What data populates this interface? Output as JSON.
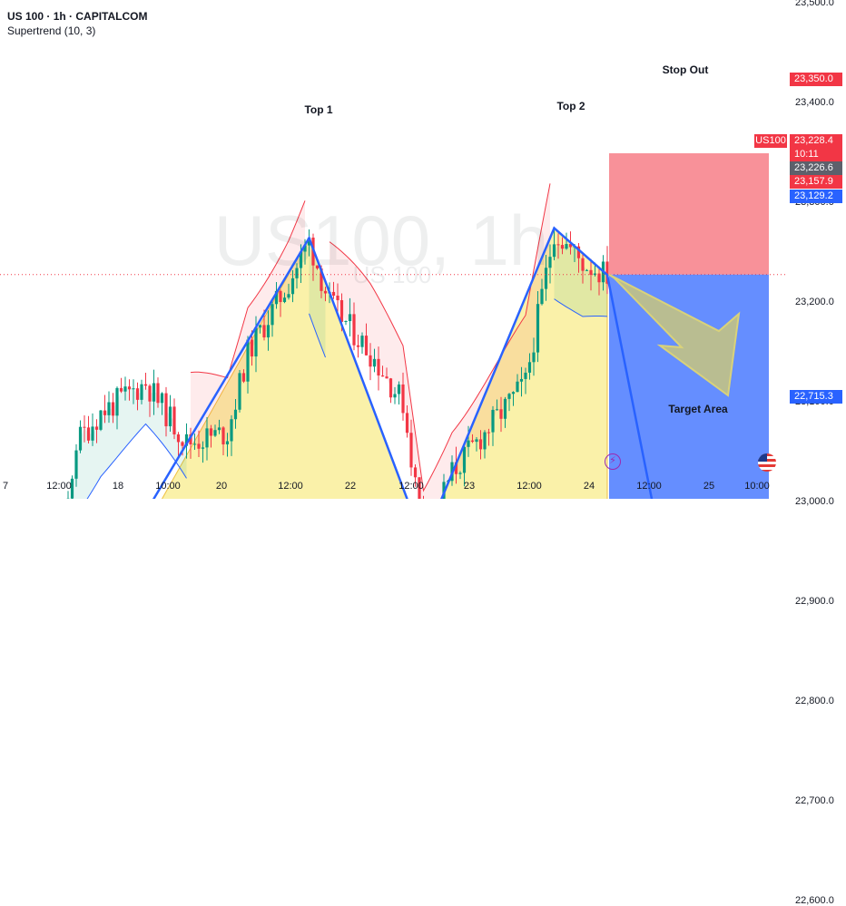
{
  "header": {
    "title": "US 100 · 1h · CAPITALCOM",
    "indicator": "Supertrend (10, 3)"
  },
  "watermark": {
    "big": "US100, 1h",
    "small": "US 100"
  },
  "symbol_badge": "US100",
  "price_badges": {
    "stop": "23,350.0",
    "current": "23,228.4",
    "countdown": "10:11",
    "mid": "23,226.6",
    "red": "23,157.9",
    "blue": "23,129.2",
    "target": "22,715.3"
  },
  "annotations": {
    "top1": "Top 1",
    "top2": "Top 2",
    "stop_out": "Stop Out",
    "target_area": "Target Area"
  },
  "colors": {
    "background": "#ffffff",
    "bull": "#089981",
    "bear": "#f23645",
    "pattern_line": "#2962ff",
    "stop_zone": "#f23645",
    "target_zone": "#2962ff",
    "arrow": "#c8c67e"
  },
  "chart_data": {
    "type": "candlestick",
    "y_axis": {
      "range": [
        22540,
        23520
      ],
      "ticks": [
        "23,500.0",
        "23,400.0",
        "23,300.0",
        "23,200.0",
        "23,100.0",
        "23,000.0",
        "22,900.0",
        "22,800.0",
        "22,700.0",
        "22,600.0"
      ]
    },
    "x_axis": {
      "ticks": [
        "7",
        "12:00",
        "18",
        "10:00",
        "20",
        "12:00",
        "22",
        "12:00",
        "23",
        "12:00",
        "24",
        "12:00",
        "25",
        "10:00"
      ]
    },
    "double_top_zigzag": [
      {
        "bar": -5,
        "price": 22715
      },
      {
        "bar": 75,
        "price": 23265
      },
      {
        "bar": 103,
        "price": 22960
      },
      {
        "bar": 135,
        "price": 23275
      },
      {
        "bar": 148,
        "price": 23228
      },
      {
        "bar": 161,
        "price": 22960
      }
    ],
    "pattern_fill": [
      {
        "bar": 33,
        "price": 22960
      },
      {
        "bar": 75,
        "price": 23265
      },
      {
        "bar": 103,
        "price": 22960
      },
      {
        "bar": 135,
        "price": 23275
      },
      {
        "bar": 148,
        "price": 23228
      },
      {
        "bar": 148,
        "price": 22955
      }
    ],
    "trade": {
      "entry": 23228.4,
      "stop": 23350.0,
      "target": 22715.3
    },
    "last_price": 23228.4
  }
}
